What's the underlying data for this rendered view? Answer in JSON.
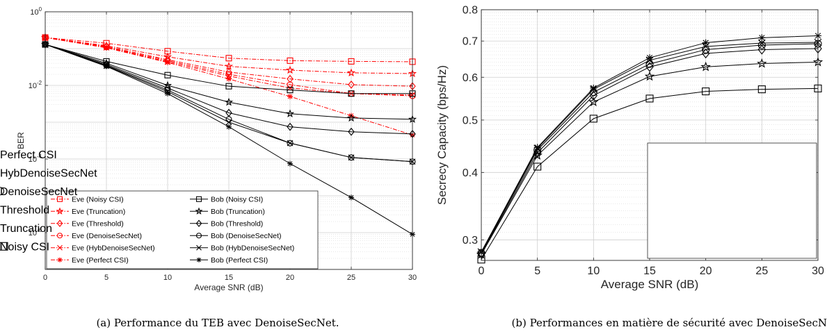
{
  "figure_captions": [
    "(a) Performance du TEB avec DenoiseSecNet.",
    "(b) Performances en matière de sécurité avec DenoiseSecN"
  ],
  "chart_data": [
    {
      "type": "line",
      "xlabel": "Average SNR (dB)",
      "ylabel": "BER",
      "x": [
        0,
        5,
        10,
        15,
        20,
        25,
        30
      ],
      "xlim": [
        0,
        30
      ],
      "ylim": [
        1e-07,
        1
      ],
      "yscale": "log",
      "xticks": [
        "0",
        "5",
        "10",
        "15",
        "20",
        "25",
        "30"
      ],
      "yticks": [
        {
          "base": "10",
          "exp": "0",
          "value": 1
        },
        {
          "base": "10",
          "exp": "-2",
          "value": 0.01
        },
        {
          "base": "10",
          "exp": "-4",
          "value": 0.0001
        },
        {
          "base": "10",
          "exp": "-6",
          "value": 1e-06
        }
      ],
      "grid": true,
      "legend_position": "bottom-left, two columns",
      "series": [
        {
          "name": "Eve (Noisy CSI)",
          "color": "#ff0000",
          "marker": "square",
          "line": "dashdot",
          "values": [
            0.2,
            0.14,
            0.085,
            0.055,
            0.047,
            0.045,
            0.044
          ]
        },
        {
          "name": "Eve (Truncation)",
          "color": "#ff0000",
          "marker": "star",
          "line": "dashdot",
          "values": [
            0.2,
            0.12,
            0.06,
            0.033,
            0.026,
            0.022,
            0.021
          ]
        },
        {
          "name": "Eve (Threshold)",
          "color": "#ff0000",
          "marker": "diamond",
          "line": "dashdot",
          "values": [
            0.2,
            0.115,
            0.05,
            0.023,
            0.015,
            0.0105,
            0.0095
          ]
        },
        {
          "name": "Eve (DenoiseSecNet)",
          "color": "#ff0000",
          "marker": "circle",
          "line": "dashdot",
          "values": [
            0.2,
            0.11,
            0.047,
            0.02,
            0.0105,
            0.006,
            0.0052
          ]
        },
        {
          "name": "Eve (HybDenoiseSecNet)",
          "color": "#ff0000",
          "marker": "x",
          "line": "dashdot",
          "values": [
            0.2,
            0.107,
            0.044,
            0.018,
            0.0085,
            0.006,
            0.0055
          ]
        },
        {
          "name": "Eve (Perfect CSI)",
          "color": "#ff0000",
          "marker": "asterisk",
          "line": "dashdot",
          "values": [
            0.2,
            0.105,
            0.042,
            0.015,
            0.005,
            0.0015,
            0.00045
          ]
        },
        {
          "name": "Bob (Noisy CSI)",
          "color": "#000000",
          "marker": "square",
          "line": "solid",
          "values": [
            0.13,
            0.045,
            0.019,
            0.0095,
            0.0075,
            0.006,
            0.006
          ]
        },
        {
          "name": "Bob (Truncation)",
          "color": "#000000",
          "marker": "star",
          "line": "solid",
          "values": [
            0.13,
            0.04,
            0.01,
            0.0035,
            0.0017,
            0.0013,
            0.0012
          ]
        },
        {
          "name": "Bob (Threshold)",
          "color": "#000000",
          "marker": "diamond",
          "line": "solid",
          "values": [
            0.13,
            0.037,
            0.0085,
            0.0018,
            0.00075,
            0.00055,
            0.00048
          ]
        },
        {
          "name": "Bob (DenoiseSecNet)",
          "color": "#000000",
          "marker": "circle",
          "line": "solid",
          "values": [
            0.13,
            0.035,
            0.0075,
            0.0012,
            0.00027,
            0.00011,
            8.5e-05
          ]
        },
        {
          "name": "Bob (HybDenoiseSecNet)",
          "color": "#000000",
          "marker": "x",
          "line": "solid",
          "values": [
            0.13,
            0.034,
            0.0068,
            0.001,
            0.00027,
            0.00011,
            8.5e-05
          ]
        },
        {
          "name": "Bob (Perfect CSI)",
          "color": "#000000",
          "marker": "asterisk",
          "line": "solid",
          "values": [
            0.13,
            0.033,
            0.006,
            0.00075,
            7.5e-05,
            9e-06,
            9e-07
          ]
        }
      ]
    },
    {
      "type": "line",
      "xlabel": "Average SNR (dB)",
      "ylabel": "Secrecy Capacity (bps/Hz)",
      "x": [
        0,
        5,
        10,
        15,
        20,
        25,
        30
      ],
      "xlim": [
        0,
        30
      ],
      "ylim": [
        0.275,
        0.8
      ],
      "yscale": "log",
      "xticks": [
        "0",
        "5",
        "10",
        "15",
        "20",
        "25",
        "30"
      ],
      "yticks": [
        "0.3",
        "0.4",
        "0.5",
        "0.6",
        "0.7",
        "0.8"
      ],
      "grid": true,
      "legend_position": "bottom-right",
      "series": [
        {
          "name": "Perfect CSI",
          "color": "#000000",
          "marker": "asterisk",
          "values": [
            0.285,
            0.445,
            0.573,
            0.652,
            0.695,
            0.71,
            0.716
          ]
        },
        {
          "name": "HybDenoiseSecNet",
          "color": "#000000",
          "marker": "x",
          "values": [
            0.285,
            0.443,
            0.57,
            0.645,
            0.684,
            0.694,
            0.696
          ]
        },
        {
          "name": "DenoiseSecNet",
          "color": "#000000",
          "marker": "circle",
          "values": [
            0.284,
            0.44,
            0.563,
            0.635,
            0.675,
            0.688,
            0.692
          ]
        },
        {
          "name": "Threshold",
          "color": "#000000",
          "marker": "diamond",
          "values": [
            0.283,
            0.435,
            0.555,
            0.627,
            0.664,
            0.675,
            0.678
          ]
        },
        {
          "name": "Truncation",
          "color": "#000000",
          "marker": "star",
          "values": [
            0.282,
            0.43,
            0.54,
            0.602,
            0.627,
            0.636,
            0.64
          ]
        },
        {
          "name": "Noisy CSI",
          "color": "#000000",
          "marker": "square",
          "values": [
            0.276,
            0.41,
            0.503,
            0.548,
            0.565,
            0.57,
            0.572
          ]
        }
      ]
    }
  ]
}
